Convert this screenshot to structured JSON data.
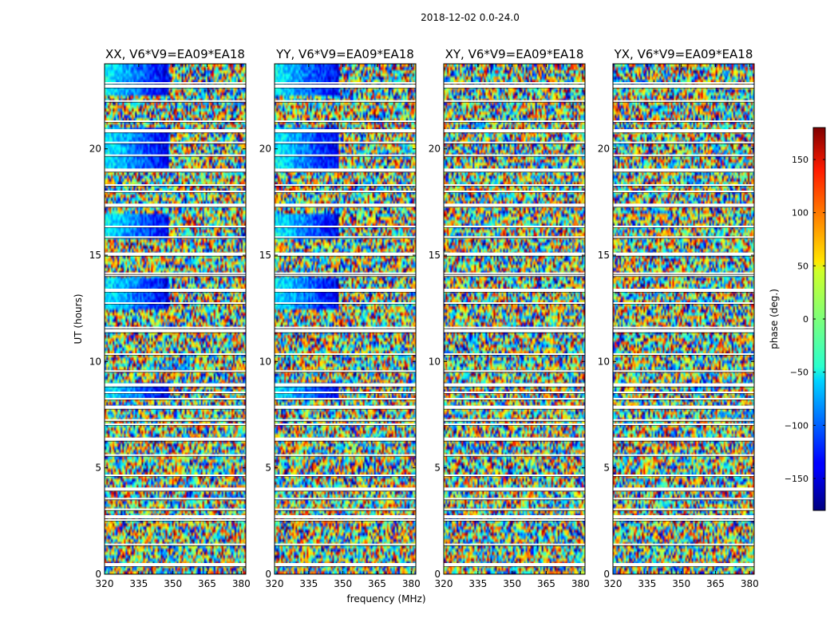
{
  "chart_data": {
    "type": "heatmap",
    "title": "2018-12-02 0.0-24.0",
    "xlabel": "frequency (MHz)",
    "ylabel": "UT (hours)",
    "xlim": [
      320,
      382
    ],
    "ylim": [
      0,
      24
    ],
    "x_ticks": [
      "320",
      "335",
      "350",
      "365",
      "380"
    ],
    "y_ticks": [
      "0",
      "5",
      "10",
      "15",
      "20"
    ],
    "colorbar": {
      "label": "phase (deg.)",
      "range": [
        -180,
        180
      ],
      "ticks": [
        "150",
        "100",
        "50",
        "0",
        "−50",
        "−100",
        "−150"
      ],
      "colormap": "jet"
    },
    "panels": [
      {
        "title": "XX, V6*V9=EA09*EA18",
        "coherent": true
      },
      {
        "title": "YY, V6*V9=EA09*EA18",
        "coherent": true
      },
      {
        "title": "XY, V6*V9=EA09*EA18",
        "coherent": false
      },
      {
        "title": "YX, V6*V9=EA09*EA18",
        "coherent": false
      }
    ],
    "flagged_gaps_ut_hours": [
      0.45,
      1.4,
      2.55,
      2.7,
      3.05,
      3.55,
      4.0,
      4.65,
      5.6,
      6.35,
      7.05,
      7.25,
      7.85,
      8.25,
      8.55,
      8.9,
      9.55,
      10.35,
      11.45,
      11.6,
      12.75,
      13.35,
      14.05,
      14.15,
      15.05,
      15.85,
      16.35,
      17.35,
      18.0,
      18.3,
      19.0,
      19.7,
      20.3,
      20.85,
      21.3,
      22.25,
      22.95,
      23.1
    ]
  }
}
